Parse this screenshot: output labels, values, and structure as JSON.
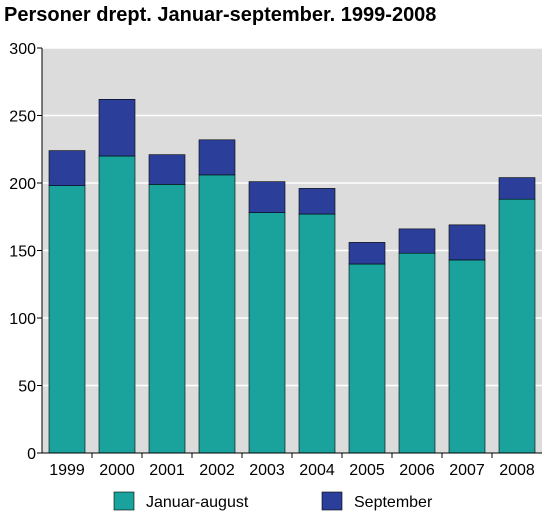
{
  "chart_data": {
    "type": "bar",
    "stacked": true,
    "title": "Personer drept. Januar-september. 1999-2008",
    "xlabel": "",
    "ylabel": "",
    "categories": [
      "1999",
      "2000",
      "2001",
      "2002",
      "2003",
      "2004",
      "2005",
      "2006",
      "2007",
      "2008"
    ],
    "series": [
      {
        "name": "Januar-august",
        "color": "#1aa39c",
        "values": [
          198,
          220,
          199,
          206,
          178,
          177,
          140,
          148,
          143,
          188
        ]
      },
      {
        "name": "September",
        "color": "#2b3f9a",
        "values": [
          26,
          42,
          22,
          26,
          23,
          19,
          16,
          18,
          26,
          16
        ]
      }
    ],
    "ylim": [
      0,
      300
    ],
    "yticks": [
      0,
      50,
      100,
      150,
      200,
      250,
      300
    ],
    "grid": true,
    "legend_position": "bottom"
  }
}
